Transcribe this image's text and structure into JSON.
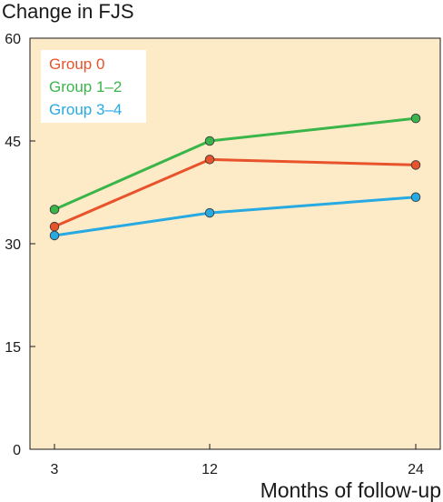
{
  "chart_data": {
    "type": "line",
    "title": "Change in FJS",
    "xlabel": "Months of follow-up",
    "ylabel": "",
    "x": [
      3,
      12,
      24
    ],
    "xticks": [
      "3",
      "12",
      "24"
    ],
    "yticks": [
      "0",
      "15",
      "30",
      "45",
      "60"
    ],
    "ylim": [
      0,
      60
    ],
    "grid": false,
    "legend_position": "top-left",
    "plot_background": "#fdebc8",
    "series": [
      {
        "name": "Group 0",
        "color": "#e8532b",
        "values": [
          32.5,
          42.3,
          41.5
        ]
      },
      {
        "name": "Group 1–2",
        "color": "#3ab54a",
        "values": [
          35.0,
          45.0,
          48.3
        ]
      },
      {
        "name": "Group 3–4",
        "color": "#27a9e1",
        "values": [
          31.2,
          34.5,
          36.8
        ]
      }
    ]
  }
}
